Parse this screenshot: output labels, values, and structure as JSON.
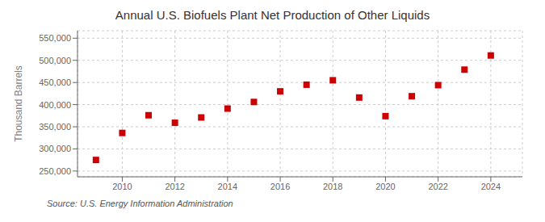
{
  "chart_data": {
    "type": "scatter",
    "title": "Annual U.S. Biofuels Plant Net Production of Other Liquids",
    "y_label": "Thousand Barrels",
    "annotations": [
      "Source: U.S. Energy Information Administration"
    ],
    "x": [
      2009,
      2010,
      2011,
      2012,
      2013,
      2014,
      2015,
      2016,
      2017,
      2018,
      2019,
      2020,
      2021,
      2022,
      2023,
      2024
    ],
    "values": [
      275000,
      336000,
      376000,
      359000,
      371000,
      391000,
      406000,
      430000,
      445000,
      455000,
      416000,
      374000,
      419000,
      444000,
      479000,
      511000
    ],
    "color": "#cc0000",
    "marker": "square",
    "xlim": [
      2008.3,
      2025.2
    ],
    "xticks": [
      2010,
      2012,
      2014,
      2016,
      2018,
      2020,
      2022,
      2024
    ],
    "ylim": [
      237000,
      567000
    ],
    "yticks": [
      {
        "value": 250000,
        "label": "250,000"
      },
      {
        "value": 300000,
        "label": "300,000"
      },
      {
        "value": 350000,
        "label": "350,000"
      },
      {
        "value": 400000,
        "label": "400,000"
      },
      {
        "value": 450000,
        "label": "450,000"
      },
      {
        "value": 500000,
        "label": "500,000"
      },
      {
        "value": 550000,
        "label": "550,000"
      }
    ],
    "grid": true
  }
}
